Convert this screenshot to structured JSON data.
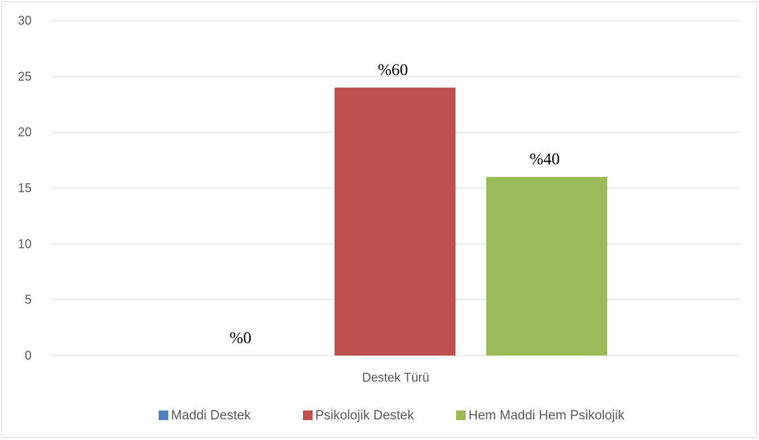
{
  "chart_data": {
    "type": "bar",
    "title": "",
    "xlabel": "",
    "ylabel": "",
    "categories": [
      "Destek Türü"
    ],
    "ylim": [
      0,
      30
    ],
    "yticks": [
      0,
      5,
      10,
      15,
      20,
      25,
      30
    ],
    "grid": true,
    "legend_position": "bottom",
    "series": [
      {
        "name": "Maddi Destek",
        "values": [
          0
        ],
        "color": "#4f81bd",
        "data_label": "%0"
      },
      {
        "name": "Psikolojik Destek",
        "values": [
          24
        ],
        "color": "#c0504d",
        "data_label": "%60"
      },
      {
        "name": "Hem Maddi Hem Psikolojik",
        "values": [
          16
        ],
        "color": "#9bbb59",
        "data_label": "%40"
      }
    ]
  }
}
